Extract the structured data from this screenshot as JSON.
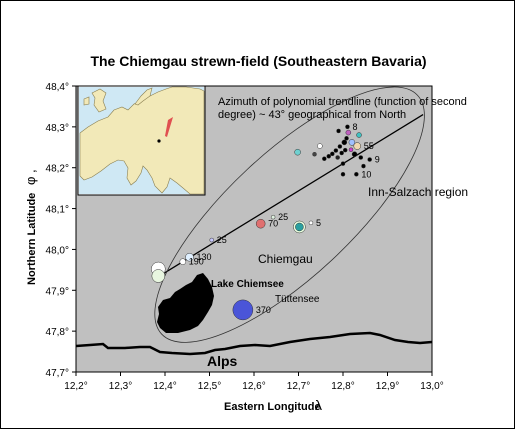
{
  "chart_data": {
    "type": "scatter",
    "title": "The Chiemgau strewn-field (Southeastern Bavaria)",
    "xlabel": "Eastern Longitude",
    "xlabel_symbol": "λ",
    "ylabel": "Northern Latitude",
    "ylabel_symbol": "φ ,",
    "xlim": [
      12.2,
      13.0
    ],
    "ylim": [
      47.7,
      48.4
    ],
    "x_ticks": [
      "12,2°",
      "12,3°",
      "12,4°",
      "12,5°",
      "12,6°",
      "12,7°",
      "12,8°",
      "12,9°",
      "13,0°"
    ],
    "y_ticks": [
      "47,7°",
      "47,8°",
      "47,9°",
      "48,0°",
      "48,1°",
      "48,2°",
      "48,3°",
      "48,4°"
    ],
    "grid": false,
    "background_color": "#c0c0c0",
    "trendline_note": "Azimuth of polynomial trendline (function of second degree) ~ 43° geographical from North",
    "trendline": {
      "from": [
        12.38,
        47.93
      ],
      "to": [
        12.98,
        48.33
      ]
    },
    "labels": {
      "region_inn": "Inn-Salzach region",
      "region_chiemgau": "Chiemgau",
      "lake": "Lake Chiemsee",
      "tuttensee": "Tüttensee",
      "alps": "Alps"
    },
    "points": [
      {
        "x": 12.385,
        "y": 47.952,
        "size": 12,
        "color": "#ffffff",
        "label": ""
      },
      {
        "x": 12.385,
        "y": 47.935,
        "size": 11,
        "color": "#e8f6e0",
        "label": ""
      },
      {
        "x": 12.44,
        "y": 47.97,
        "size": 4,
        "color": "#ffffff",
        "label": "190"
      },
      {
        "x": 12.455,
        "y": 47.981,
        "size": 6,
        "color": "#e0f0ff",
        "label": "130"
      },
      {
        "x": 12.505,
        "y": 48.023,
        "size": 2,
        "color": "#c8c8ff",
        "label": "25"
      },
      {
        "x": 12.575,
        "y": 47.852,
        "size": 18,
        "color": "#4a55d8",
        "label": "370"
      },
      {
        "x": 12.615,
        "y": 48.063,
        "size": 7,
        "color": "#e07070",
        "label": "70"
      },
      {
        "x": 12.643,
        "y": 48.079,
        "size": 2,
        "color": "#e0f0e0",
        "label": "25"
      },
      {
        "x": 12.702,
        "y": 48.055,
        "size": 10,
        "color": "#e8ffe0",
        "label": ""
      },
      {
        "x": 12.702,
        "y": 48.055,
        "size": 6,
        "color": "#2aa0a0",
        "label": ""
      },
      {
        "x": 12.728,
        "y": 48.065,
        "size": 2,
        "color": "#ffffff",
        "label": "5"
      },
      {
        "x": 12.698,
        "y": 48.238,
        "size": 4,
        "color": "#6fd0d0",
        "label": ""
      },
      {
        "x": 12.736,
        "y": 48.233,
        "size": 2,
        "color": "#444444",
        "label": ""
      },
      {
        "x": 12.748,
        "y": 48.253,
        "size": 3,
        "color": "#ffffff",
        "label": ""
      },
      {
        "x": 12.758,
        "y": 48.222,
        "size": 2,
        "color": "#000000",
        "label": ""
      },
      {
        "x": 12.768,
        "y": 48.228,
        "size": 2,
        "color": "#000000",
        "label": ""
      },
      {
        "x": 12.776,
        "y": 48.234,
        "size": 2,
        "color": "#000000",
        "label": ""
      },
      {
        "x": 12.784,
        "y": 48.242,
        "size": 2,
        "color": "#000000",
        "label": ""
      },
      {
        "x": 12.788,
        "y": 48.225,
        "size": 2,
        "color": "#222222",
        "label": ""
      },
      {
        "x": 12.793,
        "y": 48.252,
        "size": 2,
        "color": "#000000",
        "label": ""
      },
      {
        "x": 12.797,
        "y": 48.236,
        "size": 2,
        "color": "#000000",
        "label": ""
      },
      {
        "x": 12.803,
        "y": 48.262,
        "size": 3,
        "color": "#000000",
        "label": ""
      },
      {
        "x": 12.805,
        "y": 48.243,
        "size": 2,
        "color": "#000000",
        "label": ""
      },
      {
        "x": 12.808,
        "y": 48.272,
        "size": 2,
        "color": "#000000",
        "label": ""
      },
      {
        "x": 12.812,
        "y": 48.286,
        "size": 3,
        "color": "#c060c0",
        "label": ""
      },
      {
        "x": 12.81,
        "y": 48.3,
        "size": 2,
        "color": "#000000",
        "label": "8"
      },
      {
        "x": 12.79,
        "y": 48.29,
        "size": 2,
        "color": "#000000",
        "label": ""
      },
      {
        "x": 12.836,
        "y": 48.28,
        "size": 3,
        "color": "#40c0c0",
        "label": ""
      },
      {
        "x": 12.82,
        "y": 48.262,
        "size": 4,
        "color": "#a0c0ff",
        "label": ""
      },
      {
        "x": 12.832,
        "y": 48.253,
        "size": 5,
        "color": "#f0d8b0",
        "label": "55"
      },
      {
        "x": 12.818,
        "y": 48.244,
        "size": 2,
        "color": "#d040d0",
        "label": ""
      },
      {
        "x": 12.826,
        "y": 48.233,
        "size": 3,
        "color": "#000000",
        "label": ""
      },
      {
        "x": 12.84,
        "y": 48.225,
        "size": 2,
        "color": "#000000",
        "label": ""
      },
      {
        "x": 12.86,
        "y": 48.22,
        "size": 2,
        "color": "#000000",
        "label": "9"
      },
      {
        "x": 12.8,
        "y": 48.21,
        "size": 2,
        "color": "#000000",
        "label": ""
      },
      {
        "x": 12.83,
        "y": 48.184,
        "size": 2,
        "color": "#000000",
        "label": "10"
      },
      {
        "x": 12.8,
        "y": 48.184,
        "size": 2,
        "color": "#000000",
        "label": ""
      },
      {
        "x": 12.846,
        "y": 48.204,
        "size": 2,
        "color": "#000000",
        "label": ""
      }
    ]
  }
}
